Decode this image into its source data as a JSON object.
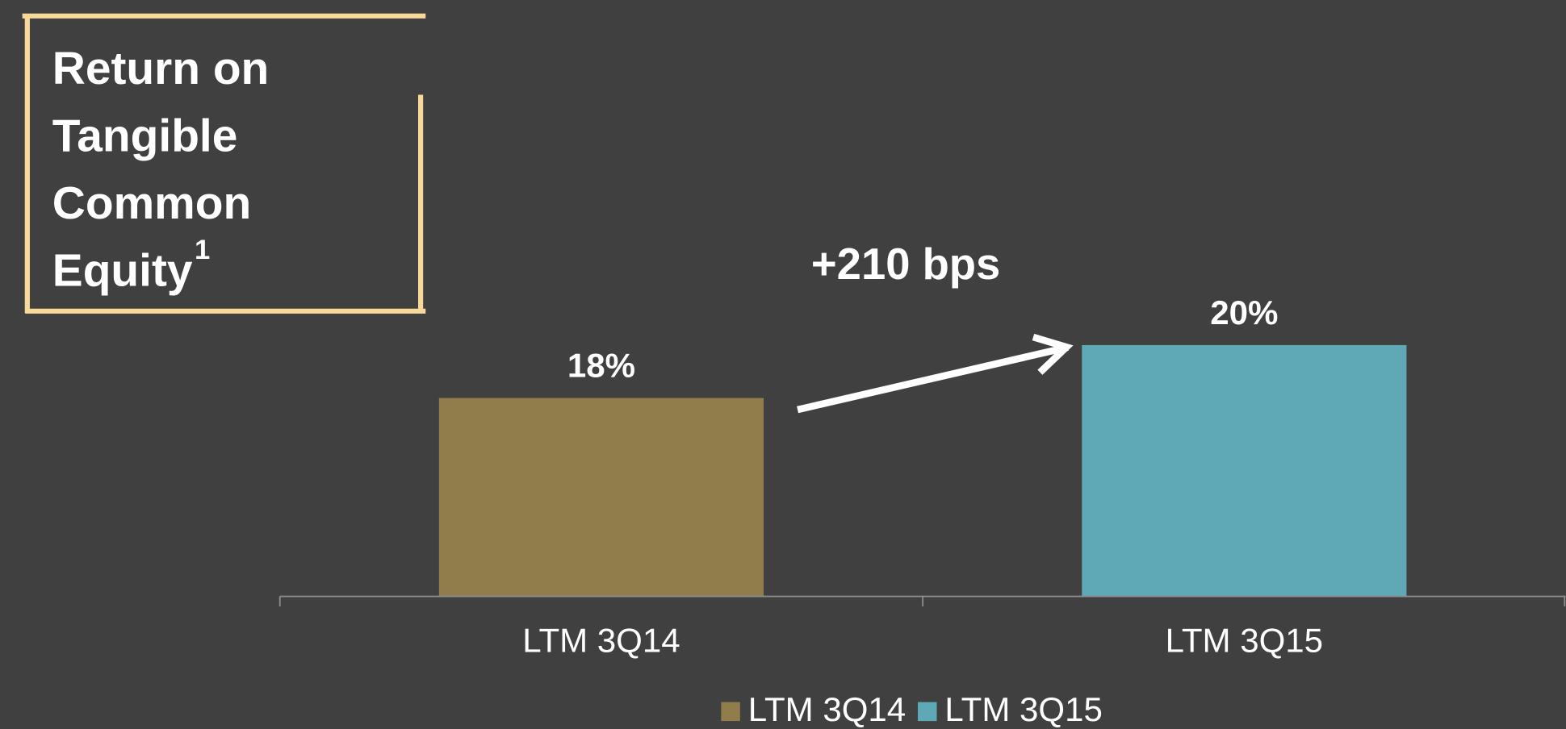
{
  "chart_data": {
    "type": "bar",
    "title_lines": [
      "Return on",
      "Tangible",
      "Common",
      "Equity"
    ],
    "title_superscript": "1",
    "annotation": "+210 bps",
    "categories": [
      "LTM 3Q14",
      "LTM 3Q15"
    ],
    "series": [
      {
        "name": "LTM 3Q14",
        "color": "#917d4c",
        "values": [
          18,
          null
        ],
        "value_labels": [
          "18%",
          null
        ]
      },
      {
        "name": "LTM 3Q15",
        "color": "#5fa8b5",
        "values": [
          null,
          20
        ],
        "value_labels": [
          null,
          "20%"
        ]
      }
    ],
    "ylim": [
      10.5,
      22
    ],
    "legend": "bottom"
  }
}
